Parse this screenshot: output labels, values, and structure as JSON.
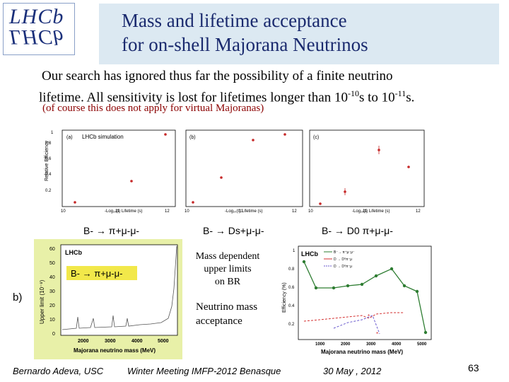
{
  "header": {
    "logo_top": "LHCb",
    "logo_bottom": "LHCb",
    "title_line1": "Mass and lifetime acceptance",
    "title_line2": "for on-shell Majorana Neutrinos"
  },
  "body": {
    "line1": "Our search has ignored thus far the possibility of a finite neutrino",
    "line2_prefix": "lifetime. All sensitivity is lost for lifetimes longer than 10",
    "exp1": "-10",
    "mid": "s to 10",
    "exp2": "-11",
    "suffix": "s.",
    "note": "(of course this does not apply for virtual Majoranas)"
  },
  "top_chart": {
    "ylabel": "Relative Efficiency",
    "xlabel": "-Log₁₀(t) Lifetime (s)",
    "simulation_label": "LHCb simulation",
    "panels": [
      {
        "tag": "(a)",
        "xticks": [
          "10",
          "11",
          "12"
        ]
      },
      {
        "tag": "(b)",
        "xticks": [
          "10",
          "11",
          "12"
        ]
      },
      {
        "tag": "(c)",
        "xticks": [
          "10",
          "11",
          "12"
        ]
      }
    ],
    "yticks": [
      "0.2",
      "0.4",
      "0.6",
      "0.8",
      "1"
    ]
  },
  "decays": {
    "d1": "B- → π+μ-μ-",
    "d2": "B- → Ds+μ-μ-",
    "d3": "B- → D0 π+μ-μ-"
  },
  "left_chart": {
    "tag": "b)",
    "label": "LHCb",
    "decay": "B- → π+μ-μ-",
    "ylabel": "Upper limit (10⁻⁸)",
    "xlabel": "Majorana neutrino mass (MeV)",
    "yticks": [
      "0",
      "10",
      "20",
      "30",
      "40",
      "50",
      "60"
    ],
    "xticks": [
      "2000",
      "3000",
      "4000",
      "5000"
    ]
  },
  "middle_text": {
    "m1": "Mass dependent",
    "m2": "upper limits",
    "m3": "on  BR",
    "n1": "Neutrino  mass",
    "n2": "acceptance"
  },
  "right_chart": {
    "label": "LHCb",
    "ylabel": "Efficiency (%)",
    "xlabel": "Majorana neutrino mass (MeV)",
    "yticks": [
      "0.2",
      "0.4",
      "0.6",
      "0.8",
      "1"
    ],
    "xticks": [
      "1000",
      "2000",
      "3000",
      "4000",
      "5000"
    ],
    "legend": [
      "B⁻→ π⁺μ⁻μ⁻",
      "D → D⁰π⁻μ",
      "D → D⁰π⁻μ"
    ]
  },
  "footer": {
    "author": "Bernardo Adeva, USC",
    "event": "Winter Meeting IMFP-2012  Benasque",
    "date": "30 May , 2012",
    "page": "63"
  },
  "colors": {
    "title": "#1a2a6e",
    "title_bg": "#dce9f2",
    "note": "#8b0000",
    "green": "#2e7d32",
    "red": "#d32f2f"
  }
}
